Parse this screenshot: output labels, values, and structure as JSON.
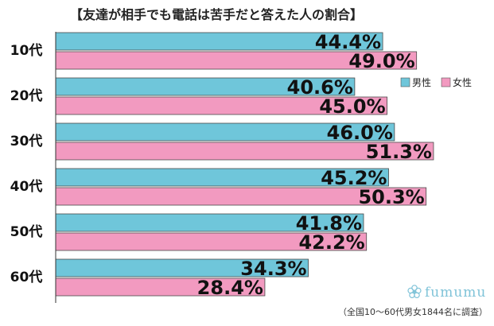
{
  "chart_data": {
    "type": "bar",
    "orientation": "horizontal",
    "title": "【友達が相手でも電話は苦手だと答えた人の割合】",
    "categories": [
      "10代",
      "20代",
      "30代",
      "40代",
      "50代",
      "60代"
    ],
    "series": [
      {
        "name": "男性",
        "color": "#6fc6da",
        "values": [
          44.4,
          40.6,
          46.0,
          45.2,
          41.8,
          34.3
        ],
        "labels": [
          "44.4%",
          "40.6%",
          "46.0%",
          "45.2%",
          "41.8%",
          "34.3%"
        ]
      },
      {
        "name": "女性",
        "color": "#f29ac0",
        "values": [
          49.0,
          45.0,
          51.3,
          50.3,
          42.2,
          28.4
        ],
        "labels": [
          "49.0%",
          "45.0%",
          "51.3%",
          "50.3%",
          "42.2%",
          "28.4%"
        ]
      }
    ],
    "xlim": [
      0,
      58
    ],
    "grid": false,
    "legend_position": "upper-right",
    "note": "（全国10～60代男女1844名に調査）",
    "brand": "fumumu"
  }
}
